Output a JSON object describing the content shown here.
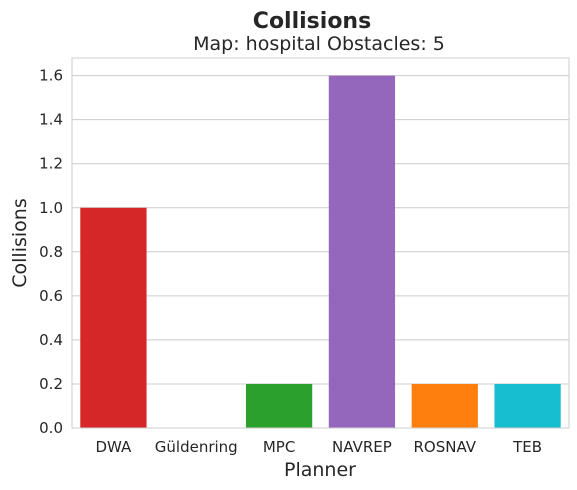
{
  "chart_data": {
    "type": "bar",
    "title": "Collisions",
    "subtitle": "Map: hospital Obstacles: 5",
    "xlabel": "Planner",
    "ylabel": "Collisions",
    "categories": [
      "DWA",
      "Güldenring",
      "MPC",
      "NAVREP",
      "ROSNAV",
      "TEB"
    ],
    "values": [
      1.0,
      0.0,
      0.2,
      1.6,
      0.2,
      0.2
    ],
    "colors": [
      "#d62728",
      "#1f77b4",
      "#2ca02c",
      "#9467bd",
      "#ff7f0e",
      "#17becf"
    ],
    "ylim": [
      0,
      1.68
    ],
    "yticks": [
      "0.0",
      "0.2",
      "0.4",
      "0.6",
      "0.8",
      "1.0",
      "1.2",
      "1.4",
      "1.6"
    ],
    "grid": "horizontal",
    "legend": "none"
  }
}
